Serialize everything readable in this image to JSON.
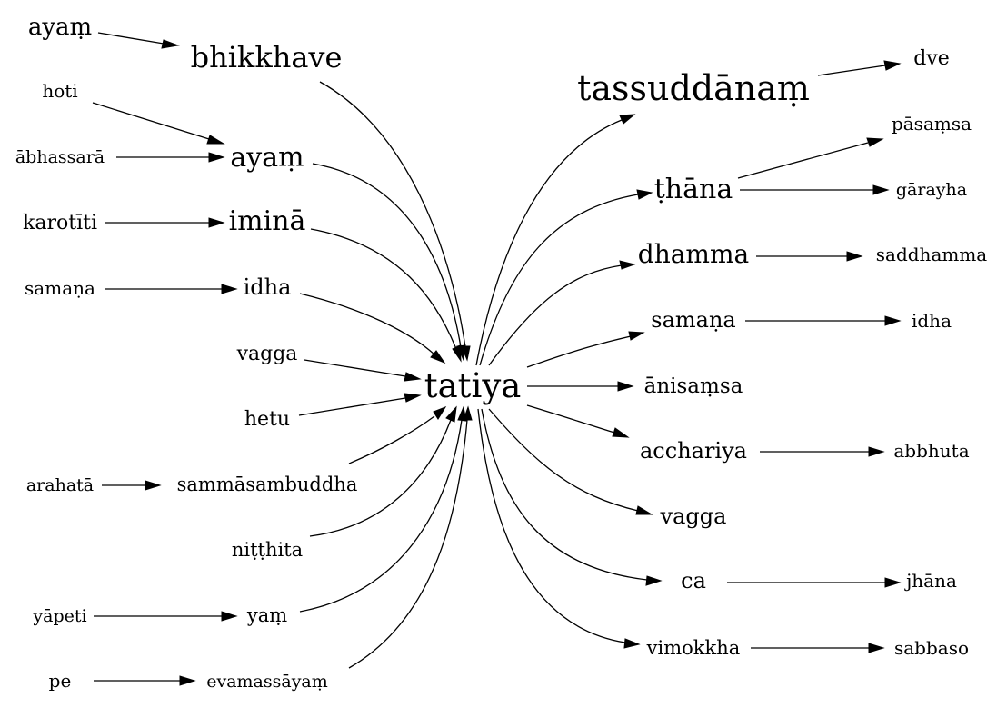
{
  "graph": {
    "center": "tatiya",
    "left_nodes": {
      "ayam_top": "ayaṃ",
      "bhikkhave": "bhikkhave",
      "hoti": "hoti",
      "abhassara": "ābhassarā",
      "ayam": "ayaṃ",
      "karotiti": "karotīti",
      "imina": "iminā",
      "samana_left": "samaṇa",
      "idha_left": "idha",
      "vagga_left": "vagga",
      "hetu": "hetu",
      "arahata": "arahatā",
      "sammasambuddha": "sammāsambuddha",
      "nitthita": "niṭṭhita",
      "yapeti": "yāpeti",
      "yam": "yaṃ",
      "pe": "pe",
      "evamassayam": "evamassāyaṃ"
    },
    "right_nodes": {
      "tassuddanam": "tassuddānaṃ",
      "dve": "dve",
      "thana": "ṭhāna",
      "pasamsa": "pāsaṃsa",
      "garayha": "gārayha",
      "dhamma": "dhamma",
      "saddhamma": "saddhamma",
      "samana_right": "samaṇa",
      "idha_right": "idha",
      "anisamsa": "ānisaṃsa",
      "acchariya": "acchariya",
      "abbhuta": "abbhuta",
      "vagga_right": "vagga",
      "ca": "ca",
      "jhana": "jhāna",
      "vimokkha": "vimokkha",
      "sabbaso": "sabbaso"
    }
  }
}
